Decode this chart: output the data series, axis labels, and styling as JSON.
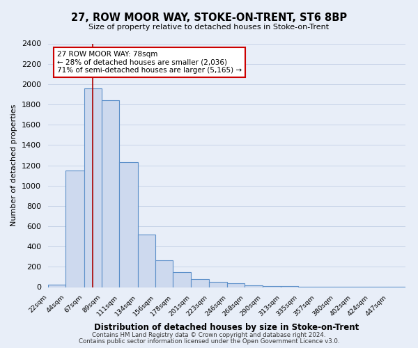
{
  "title": "27, ROW MOOR WAY, STOKE-ON-TRENT, ST6 8BP",
  "subtitle": "Size of property relative to detached houses in Stoke-on-Trent",
  "xlabel": "Distribution of detached houses by size in Stoke-on-Trent",
  "ylabel": "Number of detached properties",
  "bar_edges": [
    22,
    44,
    67,
    89,
    111,
    134,
    156,
    178,
    201,
    223,
    246,
    268,
    290,
    313,
    335,
    357,
    380,
    402,
    424,
    447,
    469
  ],
  "bar_heights": [
    25,
    1150,
    1960,
    1840,
    1230,
    520,
    265,
    150,
    80,
    50,
    40,
    20,
    10,
    7,
    5,
    2,
    2,
    2,
    2,
    2
  ],
  "bar_color": "#cdd9ee",
  "bar_edge_color": "#5b8fc9",
  "property_line_x": 78,
  "property_line_color": "#aa0000",
  "annotation_line1": "27 ROW MOOR WAY: 78sqm",
  "annotation_line2": "← 28% of detached houses are smaller (2,036)",
  "annotation_line3": "71% of semi-detached houses are larger (5,165) →",
  "annotation_box_facecolor": "#ffffff",
  "annotation_box_edgecolor": "#cc0000",
  "ylim": [
    0,
    2400
  ],
  "yticks": [
    0,
    200,
    400,
    600,
    800,
    1000,
    1200,
    1400,
    1600,
    1800,
    2000,
    2200,
    2400
  ],
  "grid_color": "#c8d4e8",
  "bg_color": "#e8eef8",
  "footer1": "Contains HM Land Registry data © Crown copyright and database right 2024.",
  "footer2": "Contains public sector information licensed under the Open Government Licence v3.0."
}
